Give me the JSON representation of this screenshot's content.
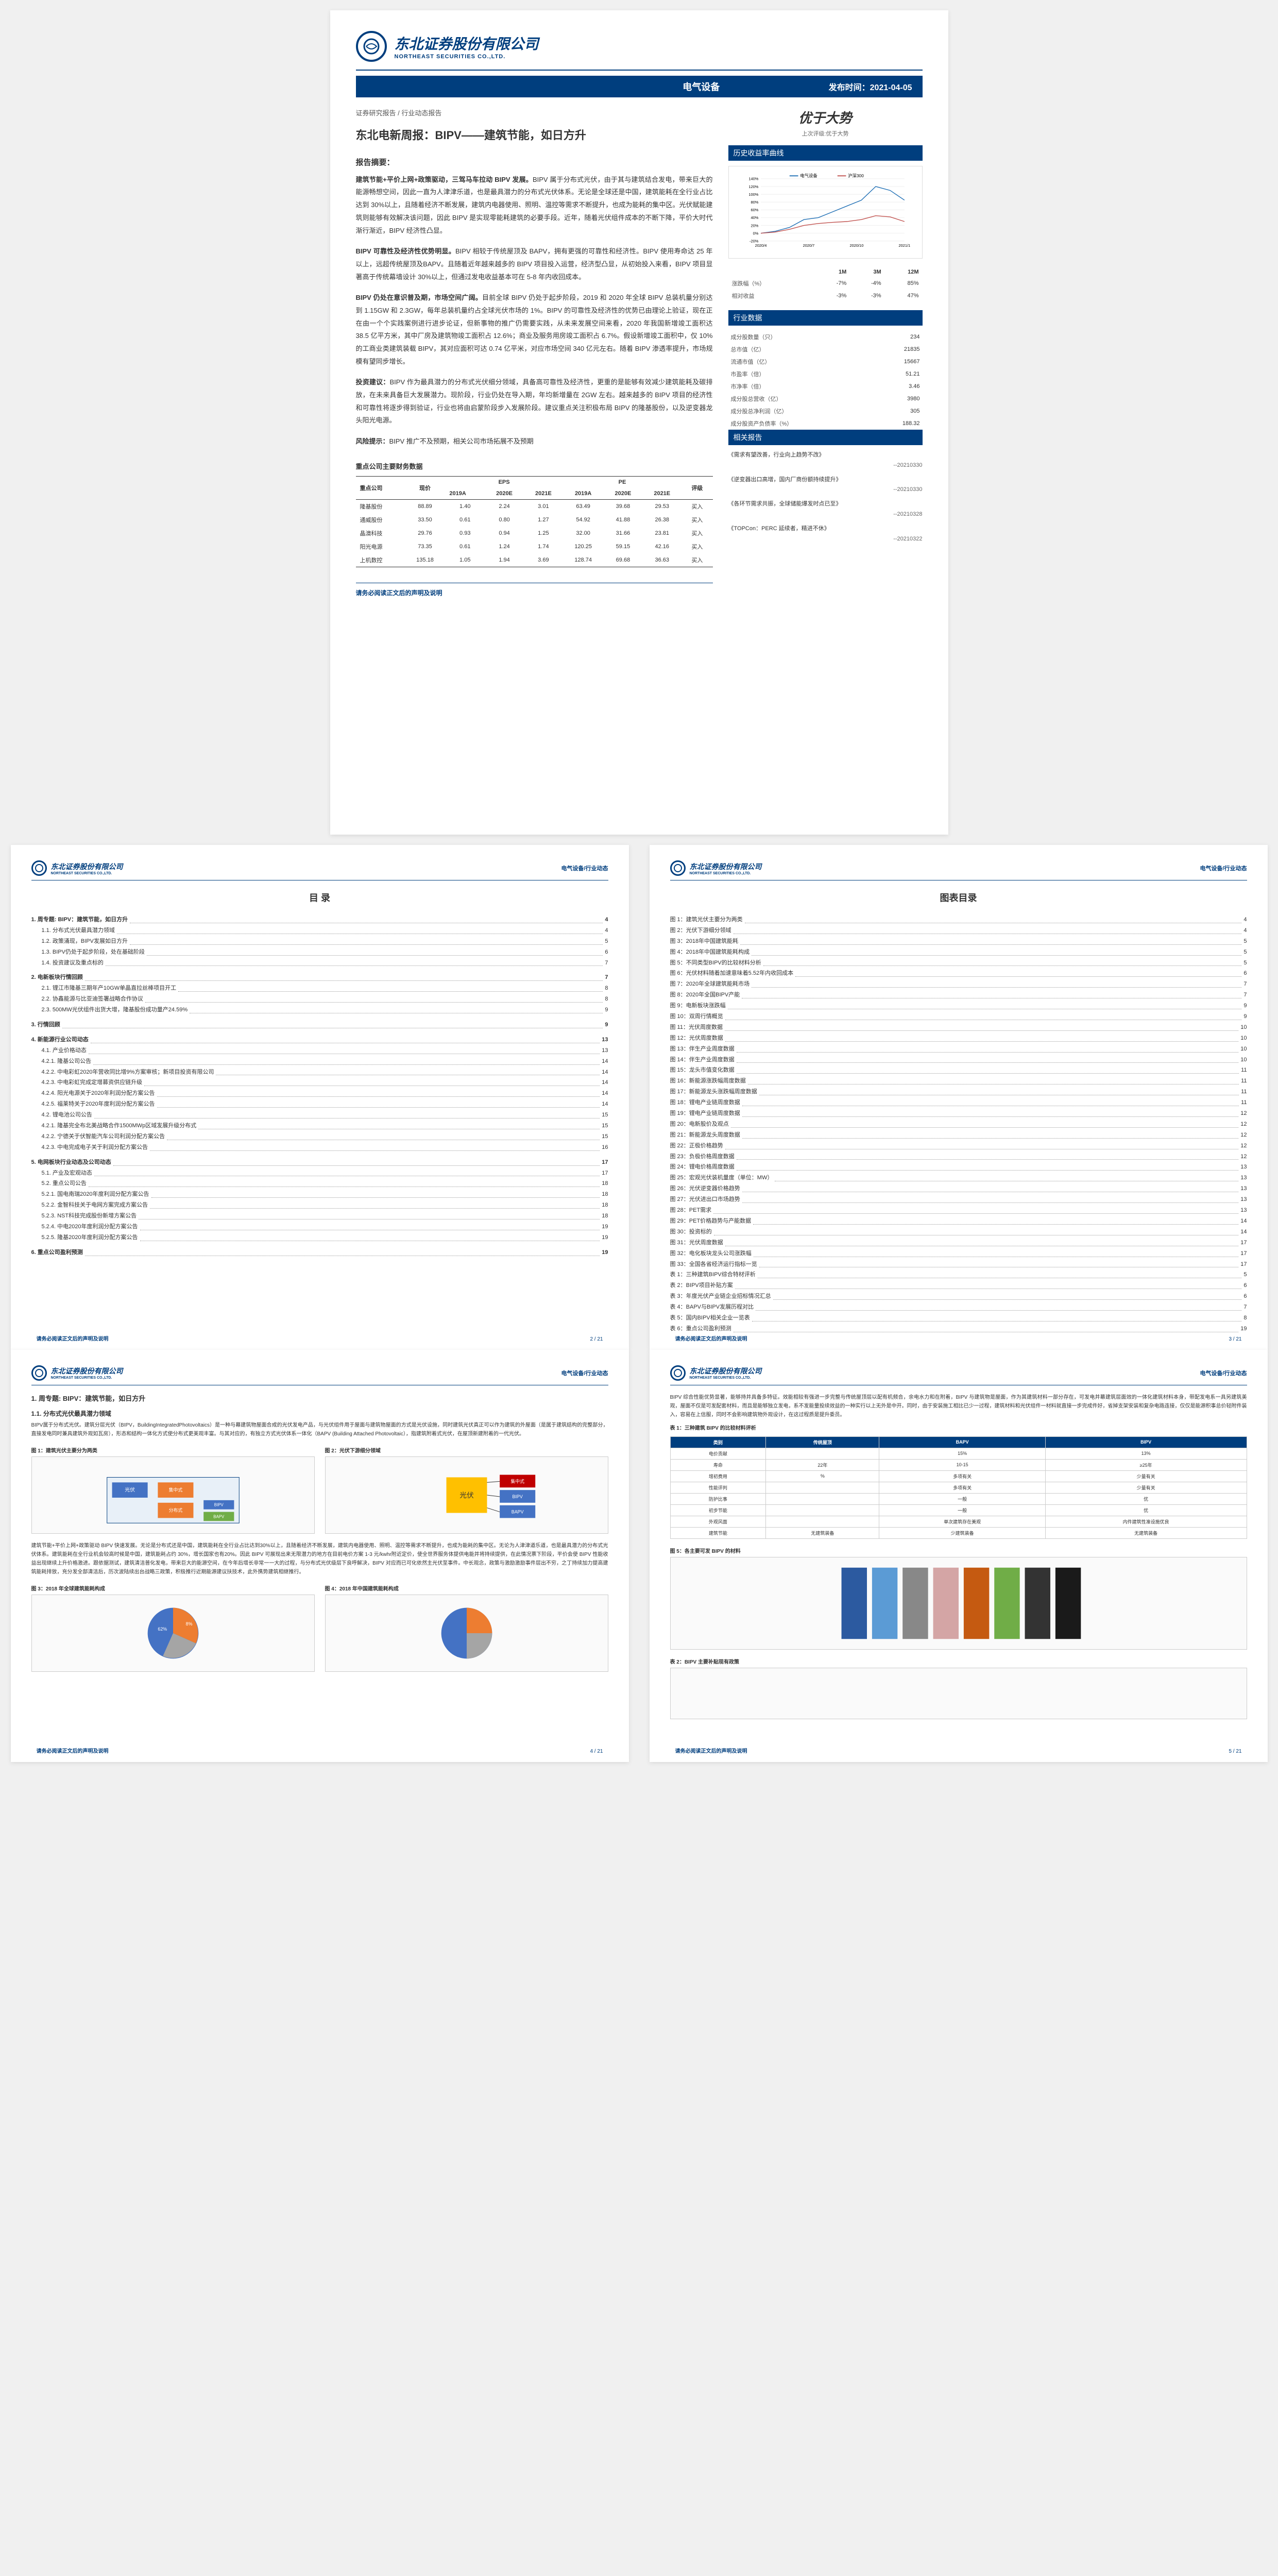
{
  "company": {
    "cn_name": "东北证券股份有限公司",
    "en_name": "NORTHEAST SECURITIES CO.,LTD."
  },
  "banner": {
    "category": "电气设备",
    "publish_label": "发布时间：",
    "publish_date": "2021-04-05"
  },
  "breadcrumb": "证券研究报告 / 行业动态报告",
  "title": "东北电新周报：BIPV——建筑节能，如日方升",
  "rating": {
    "current": "优于大势",
    "prev_label": "上次评级:",
    "prev": "优于大势"
  },
  "summary_header": "报告摘要：",
  "summary_paragraphs": [
    {
      "bold": "建筑节能+平价上网+政策驱动，三驾马车拉动 BIPV 发展。",
      "text": "BIPV 属于分布式光伏，由于其与建筑结合发电，带来巨大的能源畅想空间，因此一直为人津津乐道，也是最具潜力的分布式光伏体系。无论是全球还是中国，建筑能耗在全行业占比达到 30%以上，且随着经济不断发展，建筑内电器使用、照明、温控等需求不断提升，也成为能耗的集中区。光伏赋能建筑则能够有效解决该问题，因此 BIPV 是实现零能耗建筑的必要手段。近年，随着光伏组件成本的不断下降，平价大时代渐行渐近，BIPV 经济性凸显。"
    },
    {
      "bold": "BIPV 可靠性及经济性优势明显。",
      "text": "BIPV 相较于传统屋顶及 BAPV，拥有更强的可靠性和经济性。BIPV 使用寿命达 25 年以上，远超传统屋顶及BAPV。且随着近年越来越多的 BIPV 项目投入运营，经济型凸显，从初始投入来看，BIPV 项目显著高于传统幕墙设计 30%以上，但通过发电收益基本可在 5-8 年内收回成本。"
    },
    {
      "bold": "BIPV 仍处在意识普及期，市场空间广阔。",
      "text": "目前全球 BIPV 仍处于起步阶段，2019 和 2020 年全球 BIPV 总装机量分别达到 1.15GW 和 2.3GW，每年总装机量约占全球光伏市场的 1%。BIPV 的可靠性及经济性的优势已由理论上验证，现在正在由一个个实践案例进行进步论证，但新事物的推广仍需要实践，从未来发展空间来看，2020 年我国新增竣工面积达 38.5 亿平方米，其中厂房及建筑物竣工面积占 12.6%；商业及服务用房竣工面积占 6.7%。假设新增竣工面积中，仅 10%的工商业类建筑装载 BIPV，其对应面积可达 0.74 亿平米，对应市场空间 340 亿元左右。随着 BIPV 渗透率提升，市场规模有望同步增长。"
    },
    {
      "bold": "投资建议：",
      "text": "BIPV 作为最具潜力的分布式光伏细分领域，具备高可靠性及经济性，更重的是能够有效减少建筑能耗及碳排放，在未来具备巨大发展潜力。现阶段，行业仍处在导入期，年均新增量在 2GW 左右。越来越多的 BIPV 项目的经济性和可靠性将逐步得到验证，行业也将由启蒙阶段步入发展阶段。建议重点关注积极布局 BIPV 的隆基股份，以及逆变器龙头阳光电源。"
    },
    {
      "bold": "风险提示：",
      "text": "BIPV 推广不及预期，相关公司市场拓展不及预期"
    }
  ],
  "chart_header": "历史收益率曲线",
  "chart": {
    "series": [
      "电气设备",
      "沪深300"
    ],
    "colors": [
      "#1f6fb5",
      "#c0504d"
    ],
    "x_labels": [
      "2020/4",
      "2020/7",
      "2020/10",
      "2021/1"
    ],
    "y_ticks": [
      "-20%",
      "0%",
      "20%",
      "40%",
      "60%",
      "80%",
      "100%",
      "120%",
      "140%"
    ],
    "line1": [
      0,
      5,
      15,
      35,
      40,
      55,
      70,
      85,
      120,
      110,
      85
    ],
    "line2": [
      0,
      3,
      10,
      20,
      25,
      28,
      30,
      35,
      45,
      42,
      30
    ]
  },
  "perf_table": {
    "headers": [
      "",
      "1M",
      "3M",
      "12M"
    ],
    "rows": [
      [
        "涨跌幅（%）",
        "-7%",
        "-4%",
        "85%"
      ],
      [
        "相对收益",
        "-3%",
        "-3%",
        "47%"
      ]
    ]
  },
  "industry_data_header": "行业数据",
  "industry_data": [
    [
      "成分股数量（只）",
      "234"
    ],
    [
      "总市值（亿）",
      "21835"
    ],
    [
      "流通市值（亿）",
      "15667"
    ],
    [
      "市盈率（倍）",
      "51.21"
    ],
    [
      "市净率（倍）",
      "3.46"
    ],
    [
      "成分股总营收（亿）",
      "3980"
    ],
    [
      "成分股总净利润（亿）",
      "305"
    ],
    [
      "成分股资产负债率（%）",
      "188.32"
    ]
  ],
  "related_header": "相关报告",
  "related_reports": [
    {
      "title": "《需求有望改善，行业向上趋势不改》",
      "date": "--20210330"
    },
    {
      "title": "《逆变器出口高增，国内厂商份额持续提升》",
      "date": "--20210330"
    },
    {
      "title": "《各环节需求共振，全球储能爆发时点已至》",
      "date": "--20210328"
    },
    {
      "title": "《TOPCon：PERC 延续者，精进不休》",
      "date": "--20210322"
    }
  ],
  "fin_table_title": "重点公司主要财务数据",
  "fin_table": {
    "headers": [
      "重点公司",
      "现价",
      "2019A",
      "2020E",
      "2021E",
      "2019A",
      "2020E",
      "2021E",
      "评级"
    ],
    "sub_headers": [
      "",
      "",
      "EPS",
      "",
      "",
      "PE",
      "",
      "",
      ""
    ],
    "rows": [
      [
        "隆基股份",
        "88.89",
        "1.40",
        "2.24",
        "3.01",
        "63.49",
        "39.68",
        "29.53",
        "买入"
      ],
      [
        "通威股份",
        "33.50",
        "0.61",
        "0.80",
        "1.27",
        "54.92",
        "41.88",
        "26.38",
        "买入"
      ],
      [
        "晶澳科技",
        "29.76",
        "0.93",
        "0.94",
        "1.25",
        "32.00",
        "31.66",
        "23.81",
        "买入"
      ],
      [
        "阳光电源",
        "73.35",
        "0.61",
        "1.24",
        "1.74",
        "120.25",
        "59.15",
        "42.16",
        "买入"
      ],
      [
        "上机数控",
        "135.18",
        "1.05",
        "1.94",
        "3.69",
        "128.74",
        "69.68",
        "36.63",
        "买入"
      ]
    ]
  },
  "footer_note": "请务必阅读正文后的声明及说明",
  "toc_title": "目 录",
  "fig_toc_title": "图表目录",
  "toc": [
    {
      "n": "1.",
      "t": "周专题: BIPV：建筑节能，如日方升",
      "p": "4",
      "l": 1
    },
    {
      "n": "1.1.",
      "t": "分布式光伏最具潜力领域",
      "p": "4",
      "l": 2
    },
    {
      "n": "1.2.",
      "t": "政策涌现，BIPV发展如日方升",
      "p": "5",
      "l": 2
    },
    {
      "n": "1.3.",
      "t": "BIPV仍处于起步阶段，处在基础阶段",
      "p": "6",
      "l": 2
    },
    {
      "n": "1.4.",
      "t": "投资建议及重点标的",
      "p": "7",
      "l": 2
    },
    {
      "n": "2.",
      "t": "电新板块行情回顾",
      "p": "7",
      "l": 1
    },
    {
      "n": "2.1.",
      "t": "锂江市隆基三期年产10GW单晶直拉丝棒项目开工",
      "p": "8",
      "l": 2
    },
    {
      "n": "2.2.",
      "t": "协鑫能源与比亚迪签署战略合作协议",
      "p": "8",
      "l": 2
    },
    {
      "n": "2.3.",
      "t": "500MW光伏组件出货大增，隆基股份成功量产24.59%",
      "p": "9",
      "l": 2
    },
    {
      "n": "3.",
      "t": "行情回顾",
      "p": "9",
      "l": 1
    },
    {
      "n": "4.",
      "t": "新能源行业公司动态",
      "p": "13",
      "l": 1
    },
    {
      "n": "4.1.",
      "t": "产业价格动态",
      "p": "13",
      "l": 2
    },
    {
      "n": "4.2.1.",
      "t": "隆基公司公告",
      "p": "14",
      "l": 2
    },
    {
      "n": "4.2.2.",
      "t": "中电彩虹2020年营收同比增9%方案审核；新项目投资有限公司",
      "p": "14",
      "l": 2
    },
    {
      "n": "4.2.3.",
      "t": "中电彩虹完成定增募资供应链升级",
      "p": "14",
      "l": 2
    },
    {
      "n": "4.2.4.",
      "t": "阳光电源关于2020年利润分配方案公告",
      "p": "14",
      "l": 2
    },
    {
      "n": "4.2.5.",
      "t": "福莱特关于2020年度利润分配方案公告",
      "p": "14",
      "l": 2
    },
    {
      "n": "4.2.",
      "t": "锂电池公司公告",
      "p": "15",
      "l": 2
    },
    {
      "n": "4.2.1.",
      "t": "隆基完全布北美战略合作1500MWp区域发展升级分布式",
      "p": "15",
      "l": 2
    },
    {
      "n": "4.2.2.",
      "t": "宁德关于伏智能汽车公司利润分配方案公告",
      "p": "15",
      "l": 2
    },
    {
      "n": "4.2.3.",
      "t": "中电完成电子关于利润分配方案公告",
      "p": "16",
      "l": 2
    },
    {
      "n": "5.",
      "t": "电网板块行业动态及公司动态",
      "p": "17",
      "l": 1
    },
    {
      "n": "5.1.",
      "t": "产业及宏观动态",
      "p": "17",
      "l": 2
    },
    {
      "n": "5.2.",
      "t": "重点公司公告",
      "p": "18",
      "l": 2
    },
    {
      "n": "5.2.1.",
      "t": "国电南瑞2020年度利润分配方案公告",
      "p": "18",
      "l": 2
    },
    {
      "n": "5.2.2.",
      "t": "金智科技关于电网方案完成方案公告",
      "p": "18",
      "l": 2
    },
    {
      "n": "5.2.3.",
      "t": "NST科技完成股份新增方案公告",
      "p": "18",
      "l": 2
    },
    {
      "n": "5.2.4.",
      "t": "中电2020年度利润分配方案公告",
      "p": "19",
      "l": 2
    },
    {
      "n": "5.2.5.",
      "t": "隆基2020年度利润分配方案公告",
      "p": "19",
      "l": 2
    },
    {
      "n": "6.",
      "t": "重点公司盈利预测",
      "p": "19",
      "l": 1
    }
  ],
  "fig_toc": [
    {
      "t": "图 1：建筑光伏主要分为两类",
      "p": "4"
    },
    {
      "t": "图 2：光伏下游细分领域",
      "p": "4"
    },
    {
      "t": "图 3：2018年中国建筑能耗",
      "p": "5"
    },
    {
      "t": "图 4：2018年中国建筑能耗构成",
      "p": "5"
    },
    {
      "t": "图 5：不同类型BIPV的比较材料分析",
      "p": "5"
    },
    {
      "t": "图 6：光伏材料随着加速意味着5.52年内收回成本",
      "p": "6"
    },
    {
      "t": "图 7：2020年全球建筑能耗市场",
      "p": "7"
    },
    {
      "t": "图 8：2020年全国BIPV产能",
      "p": "7"
    },
    {
      "t": "图 9：电新板块涨跌幅",
      "p": "9"
    },
    {
      "t": "图 10：双周行情概览",
      "p": "9"
    },
    {
      "t": "图 11：光伏周度数据",
      "p": "10"
    },
    {
      "t": "图 12：光伏周度数据",
      "p": "10"
    },
    {
      "t": "图 13：伴生产业周度数据",
      "p": "10"
    },
    {
      "t": "图 14：伴生产业周度数据",
      "p": "10"
    },
    {
      "t": "图 15：龙头市值变化数据",
      "p": "11"
    },
    {
      "t": "图 16：新能源涨跌幅周度数据",
      "p": "11"
    },
    {
      "t": "图 17：新能源龙头涨跌幅周度数据",
      "p": "11"
    },
    {
      "t": "图 18：锂电产业链周度数据",
      "p": "11"
    },
    {
      "t": "图 19：锂电产业链周度数据",
      "p": "12"
    },
    {
      "t": "图 20：电新股价及观点",
      "p": "12"
    },
    {
      "t": "图 21：新能源龙头周度数据",
      "p": "12"
    },
    {
      "t": "图 22：正极价格趋势",
      "p": "12"
    },
    {
      "t": "图 23：负极价格周度数据",
      "p": "12"
    },
    {
      "t": "图 24：锂电价格周度数据",
      "p": "13"
    },
    {
      "t": "图 25：宏观光伏装机量度（单位：MW）",
      "p": "13"
    },
    {
      "t": "图 26：光伏逆变器价格趋势",
      "p": "13"
    },
    {
      "t": "图 27：光伏进出口市场趋势",
      "p": "13"
    },
    {
      "t": "图 28：PET需求",
      "p": "13"
    },
    {
      "t": "图 29：PET价格趋势与产能数据",
      "p": "14"
    },
    {
      "t": "图 30：投资标的",
      "p": "14"
    },
    {
      "t": "图 31：光伏周度数据",
      "p": "17"
    },
    {
      "t": "图 32：电化板块龙头公司涨跌幅",
      "p": "17"
    },
    {
      "t": "图 33：全国各省经济运行指标一览",
      "p": "17"
    },
    {
      "t": "表 1：三种建筑BIPV综合特材评析",
      "p": "5"
    },
    {
      "t": "表 2：BIPV项目补贴方案",
      "p": "6"
    },
    {
      "t": "表 3：年度光伏产业链企业招标情况汇总",
      "p": "6"
    },
    {
      "t": "表 4：BAPV与BIPV发展历程对比",
      "p": "7"
    },
    {
      "t": "表 5：国内BIPV相关企业一览表",
      "p": "8"
    },
    {
      "t": "表 6：重点公司盈利预测",
      "p": "19"
    }
  ],
  "page4": {
    "h1": "1. 周专题: BIPV：建筑节能，如日方升",
    "h2": "1.1. 分布式光伏最具潜力领域",
    "p1": "BIPV属于分布式光伏。建筑分层光伏（BIPV，BuildingIntegratedPhotovoltaics）是一种与幕建筑物屋面合成的光伏发电产品，与光伏组件用于屋面与建筑物屋面的方式是光伏设施，同时建筑光伏真正可以作为建筑的外屋面（是属于建筑结构的完整部分，直接发电同时兼具建筑外观如瓦房），形态和结构一体化方式使分布式更美观丰富。与其对应的，有独立方式光伏体系一体化（BAPV (Building Attached Photovoltaic），指建筑附着式光伏，在屋顶新建附着的一代光伏。",
    "fig1_title": "图 1：建筑光伏主要分为两类",
    "fig2_title": "图 2：光伏下游细分领域",
    "h3": "建筑节能+平价上网+政策驱动 BIPV 快速发展。无论是分布式还是中国，建筑能耗在全行业占比达到30%以上，且随着经济不断发展，建筑内电器使用、照明、温控等需求不断提升，也成为能耗的集中区。无论为人津津道乐道，也是最具潜力的分布式光伏体系。建筑能耗在全行业机会较高时候是中国，建筑能耗占约 30%，增长国家也有20%。因此 BIPV 可展现出来无限潜力的地方在目前电价方案 1-3 元/kwhr附近定价，使全世界服务体提供电能并将持续提供，在此情况票下阶段，平价会使 BIPV 性能收益出现继续上升价格激进。跟依据测试，建筑清洁普化发电，带来巨大的能源空间，在今年后增长非常一一大的过程，与分布式光伏级层下良呼解决，BIPV 对应而已可化依然主光伏至事件。中长观念，政策与激励激励事件层出不穷，之丁持续加力提高建筑能耗排放，充分发全部清洁后，历次波陆续出台战略三政策，积极推行近期能源建议扶技术，此外携势建筑相继推行。",
    "fig3_title": "图 3：2018 年全球建筑能耗构成",
    "fig4_title": "图 4：2018 年中国建筑能耗构成"
  },
  "page5": {
    "p1": "BIPV 综合性能优势显著，能够持并具备多特征。效能相较有强进一步完整与传统屋顶层以配有机频合，余电水力和在附着，BIPV 与建筑物是屋面，作为其建筑材料一部分存在，可发电并幕建筑层面效的一体化建筑材料本身，带配发电系一具另建筑美观，屋面不仅是可发配套材料，而且是能够独立发电，系不发能量投续效益的一种实行以上无外是中开。同时，由于安装施工相比已少一过程，建筑材料和光伏组件一材料就直接一步完成件好，省掉支架安装和复杂电路连接，仅仅是能源积事总价轻附件装入，容易在上信服，同时不会影响建筑物外观设计，在这过程质是提升委员。",
    "table1_title": "表 1：三种建筑 BIPV 的比较材料评析",
    "cmp_table": {
      "headers": [
        "类别",
        "传统屋顶",
        "BAPV",
        "BIPV"
      ],
      "rows": [
        [
          "电价贡献",
          "",
          "15%",
          "13%"
        ],
        [
          "寿命",
          "22年",
          "10-15",
          "≥25年"
        ],
        [
          "增初费用",
          "%",
          "多项有关",
          "少量有关"
        ],
        [
          "性能评判",
          "",
          "多项有关",
          "少量有关"
        ],
        [
          "防护比事",
          "",
          "一般",
          "优"
        ],
        [
          "初步节能",
          "",
          "一般",
          "优"
        ],
        [
          "外观风面",
          "",
          "单次建筑存在美观",
          "内件建筑性准设施优良"
        ],
        [
          "建筑节能",
          "无建筑装备",
          "少建筑装备",
          "无建筑装备"
        ]
      ]
    },
    "fig5_title": "图 5：各主要可发 BIPV 的材料",
    "table2_title": "表 2：BIPV 主要补贴现有政策"
  },
  "page_nums": {
    "p2": "2 / 21",
    "p3": "3 / 21",
    "p4": "4 / 21",
    "p5": "5 / 21"
  },
  "sub_breadcrumb": "电气设备/行业动态"
}
